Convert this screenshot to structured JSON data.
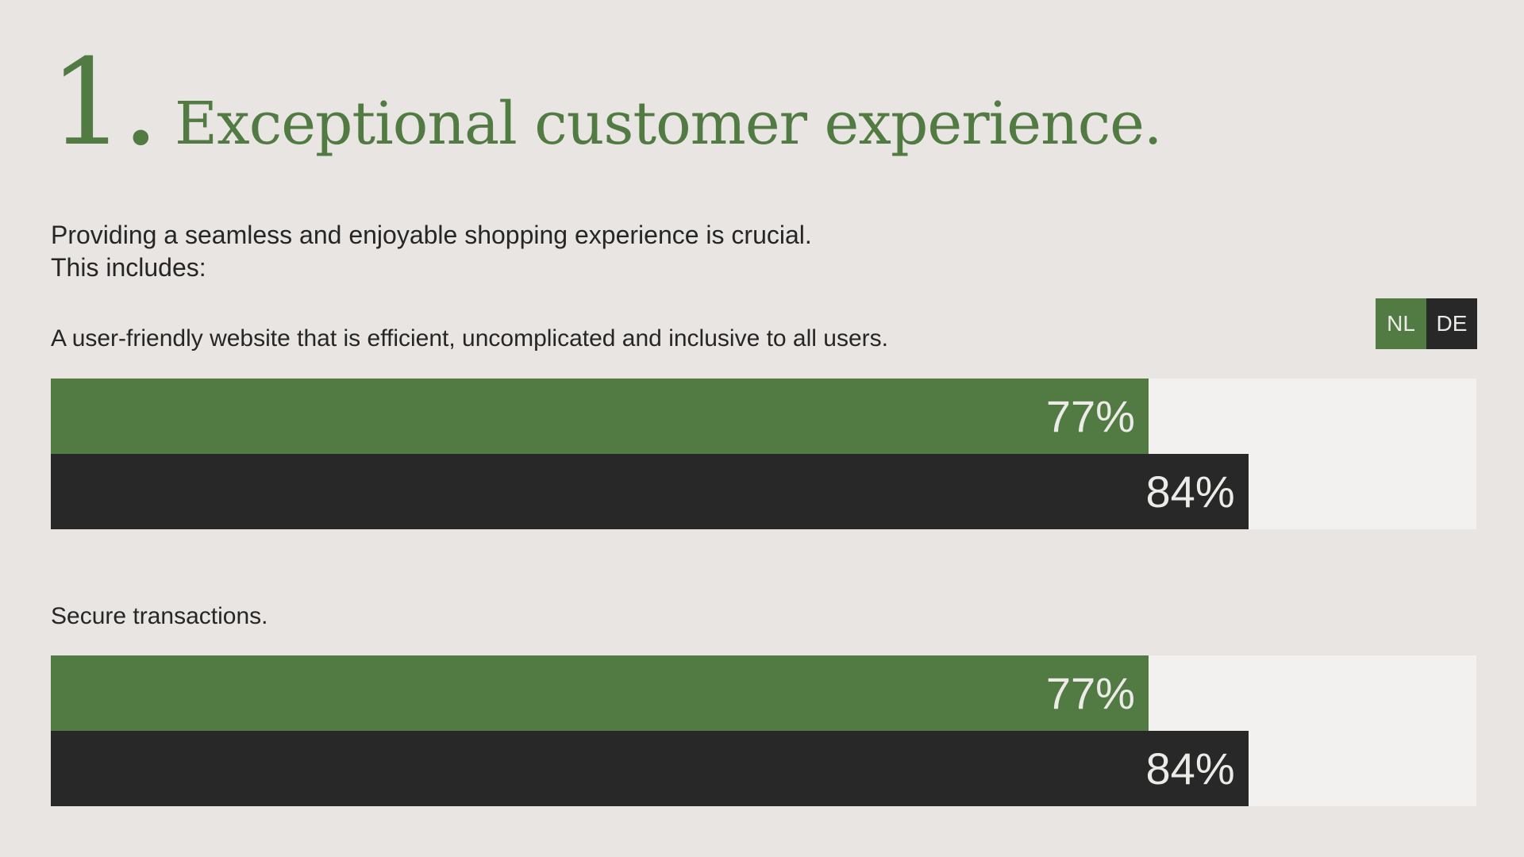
{
  "heading": {
    "number": "1.",
    "title": "Exceptional customer experience."
  },
  "intro": {
    "line1": "Providing a seamless and enjoyable shopping experience is crucial.",
    "line2": "This includes:"
  },
  "legend": {
    "items": [
      {
        "label": "NL",
        "color": "#527a43"
      },
      {
        "label": "DE",
        "color": "#282828"
      }
    ]
  },
  "colors": {
    "background": "#e8e5e2",
    "track": "#f2f1ef",
    "accent_green": "#527a43",
    "dark": "#282828",
    "bar_text": "#ecebe8"
  },
  "chart_data": {
    "type": "bar",
    "orientation": "horizontal",
    "categories": [
      "A user-friendly website that is efficient, uncomplicated and inclusive to all users.",
      "Secure transactions."
    ],
    "series": [
      {
        "name": "NL",
        "values": [
          77,
          77
        ],
        "labels": [
          "77%",
          "77%"
        ]
      },
      {
        "name": "DE",
        "values": [
          84,
          84
        ],
        "labels": [
          "84%",
          "84%"
        ]
      }
    ],
    "xlim": [
      0,
      100
    ],
    "unit": "%",
    "legend": "top-right"
  }
}
